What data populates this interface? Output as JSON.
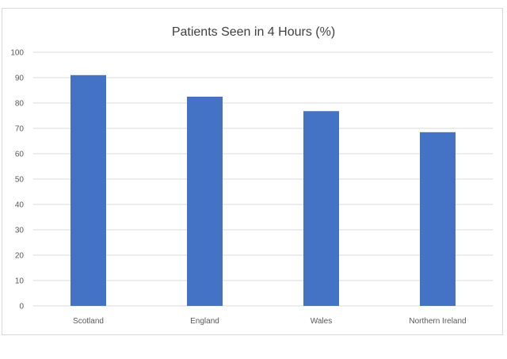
{
  "chart_data": {
    "type": "bar",
    "title": "Patients Seen in 4 Hours (%)",
    "xlabel": "",
    "ylabel": "",
    "categories": [
      "Scotland",
      "England",
      "Wales",
      "Northern Ireland"
    ],
    "values": [
      91,
      82.5,
      76.8,
      68.5
    ],
    "ylim": [
      0,
      100
    ],
    "yticks": [
      0,
      10,
      20,
      30,
      40,
      50,
      60,
      70,
      80,
      90,
      100
    ],
    "grid": true,
    "legend": "none",
    "bar_color": "#4472C4",
    "grid_color": "#d9d9d9"
  }
}
